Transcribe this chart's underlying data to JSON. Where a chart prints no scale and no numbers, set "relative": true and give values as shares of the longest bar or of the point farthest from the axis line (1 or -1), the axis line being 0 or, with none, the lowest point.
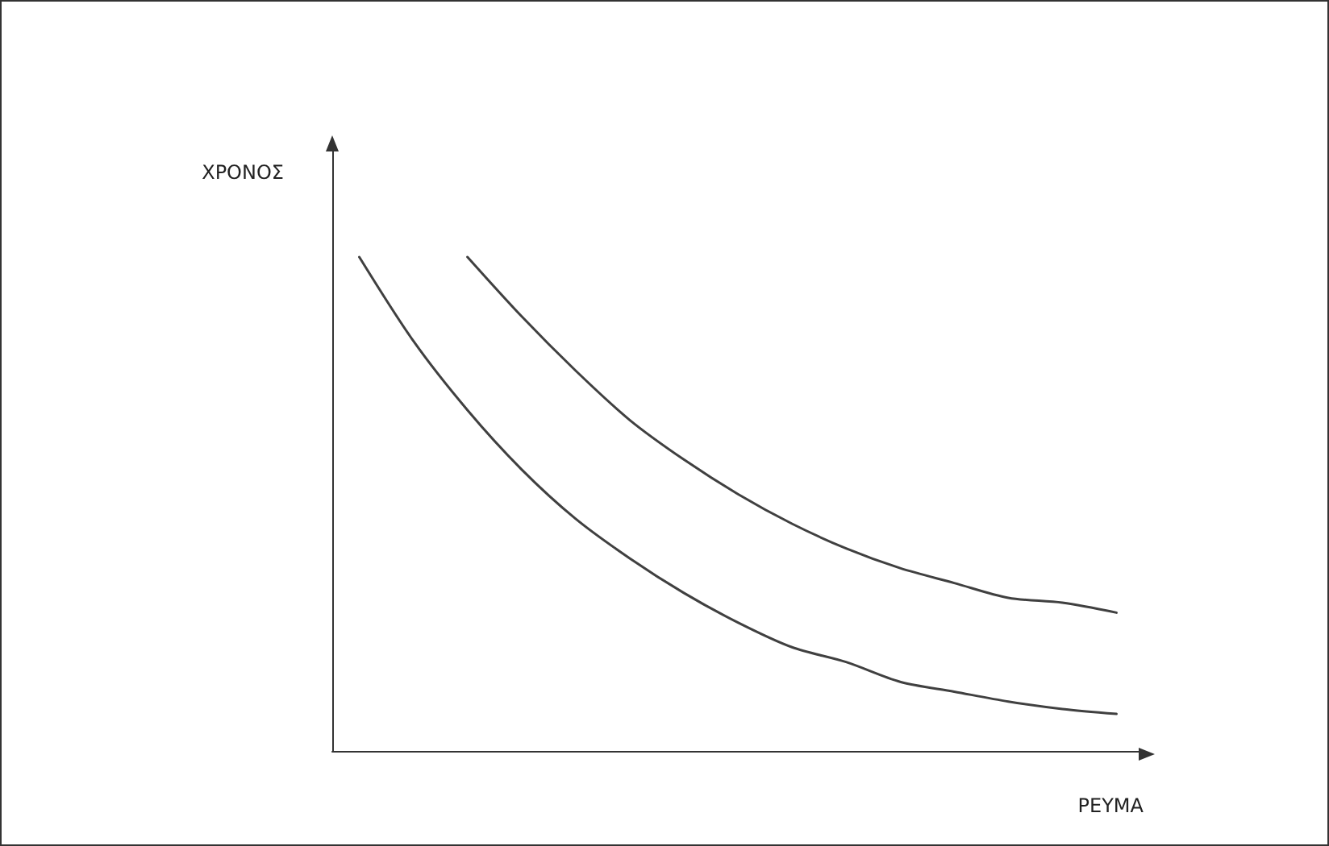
{
  "chart_data": {
    "type": "line",
    "relative": true,
    "xlabel": "ΡΕΥΜΑ",
    "ylabel": "ΧΡΟΝΟΣ",
    "grid": false,
    "marker": "none",
    "line_style": "solid",
    "categories": [
      null,
      null,
      null,
      null,
      null,
      null,
      null,
      null,
      null,
      null,
      null,
      null,
      null,
      null,
      null
    ],
    "series": [
      {
        "color": "#404040",
        "values": [
          1.0,
          0.83,
          0.69,
          0.57,
          0.47,
          0.39,
          0.32,
          0.26,
          0.21,
          0.18,
          0.14,
          0.12,
          0.1,
          0.085,
          0.075
        ]
      },
      {
        "color": "#404040",
        "values": [
          null,
          null,
          1.0,
          0.88,
          0.77,
          0.67,
          0.59,
          0.52,
          0.46,
          0.41,
          0.37,
          0.34,
          0.31,
          0.3,
          0.28
        ]
      }
    ]
  }
}
